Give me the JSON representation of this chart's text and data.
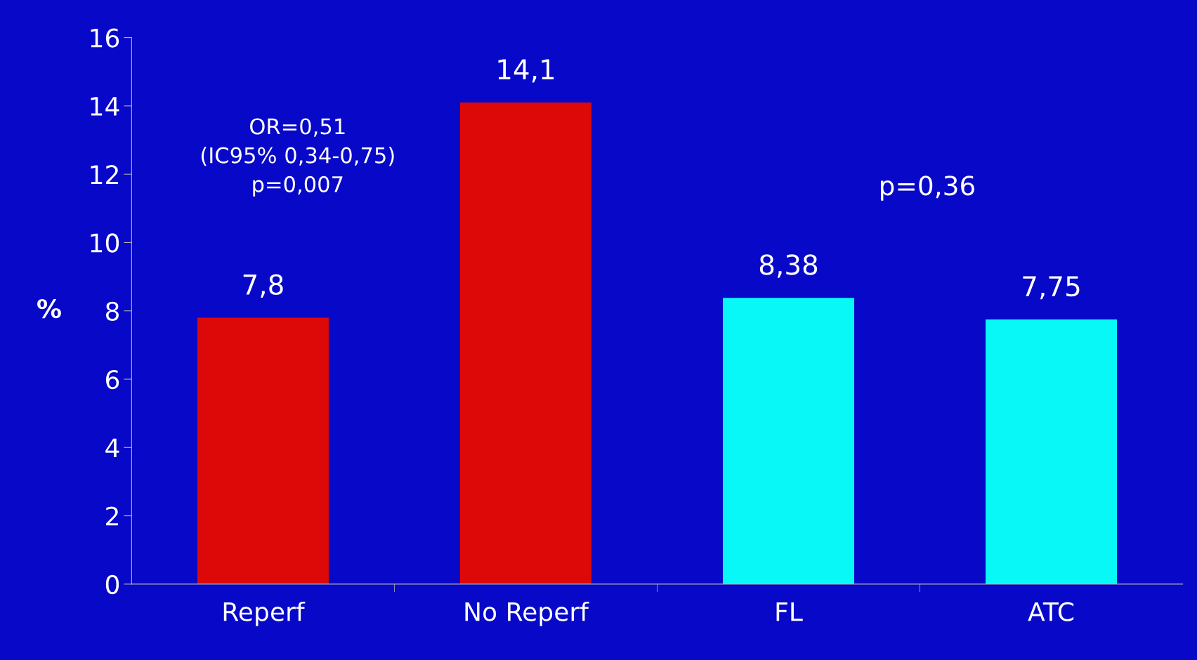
{
  "chart_data": {
    "type": "bar",
    "ylabel": "%",
    "categories": [
      "Reperf",
      "No Reperf",
      "FL",
      "ATC"
    ],
    "values": [
      7.8,
      14.1,
      8.38,
      7.75
    ],
    "colors": [
      "#dd0808",
      "#dd0808",
      "#08f8f8",
      "#08f8f8"
    ],
    "value_labels": [
      "7,8",
      "14,1",
      "8,38",
      "7,75"
    ],
    "ylim": [
      0,
      16
    ],
    "yticks": [
      0,
      2,
      4,
      6,
      8,
      10,
      12,
      14,
      16
    ],
    "annotations": [
      "OR=0,51\n(IC95% 0,34-0,75)\np=0,007",
      "p=0,36"
    ],
    "grid": false,
    "legend": false
  }
}
